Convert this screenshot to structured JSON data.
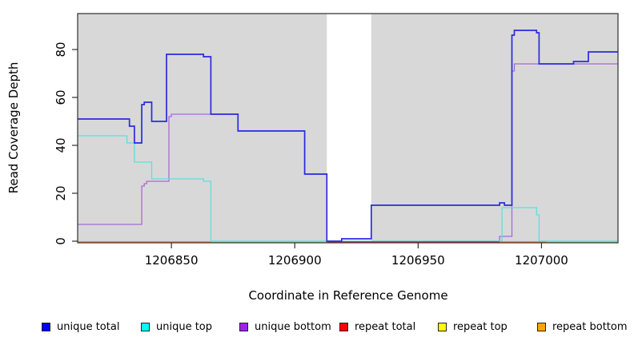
{
  "chart_data": {
    "type": "line",
    "subtype": "step-coverage-plot",
    "title": "",
    "xlabel": "Coordinate in Reference Genome",
    "ylabel": "Read Coverage Depth",
    "x_ticks": [
      1206850,
      1206900,
      1206950,
      1207000
    ],
    "y_ticks": [
      0,
      20,
      40,
      60,
      80
    ],
    "xlim": [
      1206812,
      1207031
    ],
    "ylim": [
      0,
      90
    ],
    "plot_bg_color": "#d8d8d8",
    "gap_band": {
      "x_start": 1206913,
      "x_end": 1206931,
      "color": "#ffffff"
    },
    "series": [
      {
        "name": "unique bottom",
        "color": "#a86ad6",
        "legend_color": "#a020f0",
        "steps": [
          [
            1206812,
            7
          ],
          [
            1206838,
            23
          ],
          [
            1206839,
            24
          ],
          [
            1206840,
            25
          ],
          [
            1206849,
            52
          ],
          [
            1206850,
            53
          ],
          [
            1206877,
            46
          ],
          [
            1206904,
            28
          ],
          [
            1206913,
            0
          ],
          [
            1206983,
            2
          ],
          [
            1206988,
            71
          ],
          [
            1206989,
            74
          ]
        ],
        "x_end": 1207031
      },
      {
        "name": "unique top",
        "color": "#5fdede",
        "legend_color": "#00ffff",
        "steps": [
          [
            1206812,
            44
          ],
          [
            1206832,
            41
          ],
          [
            1206835,
            33
          ],
          [
            1206842,
            26
          ],
          [
            1206863,
            25
          ],
          [
            1206866,
            0
          ],
          [
            1206984,
            14
          ],
          [
            1206998,
            11
          ],
          [
            1206999,
            0
          ]
        ],
        "x_end": 1207031
      },
      {
        "name": "unique total",
        "color": "#2b2be0",
        "legend_color": "#0000ff",
        "steps": [
          [
            1206812,
            51
          ],
          [
            1206833,
            48
          ],
          [
            1206835,
            41
          ],
          [
            1206838,
            57
          ],
          [
            1206839,
            58
          ],
          [
            1206842,
            50
          ],
          [
            1206848,
            78
          ],
          [
            1206863,
            77
          ],
          [
            1206866,
            53
          ],
          [
            1206877,
            46
          ],
          [
            1206904,
            28
          ],
          [
            1206913,
            0
          ],
          [
            1206919,
            1
          ],
          [
            1206931,
            15
          ],
          [
            1206983,
            16
          ],
          [
            1206985,
            15
          ],
          [
            1206988,
            86
          ],
          [
            1206989,
            88
          ],
          [
            1206998,
            87
          ],
          [
            1206999,
            74
          ],
          [
            1207013,
            75
          ],
          [
            1207019,
            79
          ]
        ],
        "x_end": 1207031
      },
      {
        "name": "repeat total",
        "color": "#cc3b5e",
        "legend_color": "#ff0000",
        "steps": [
          [
            1206812,
            0
          ]
        ],
        "x_end": 1207031
      },
      {
        "name": "repeat top",
        "color": "#f2e641",
        "legend_color": "#ffff00",
        "steps": [
          [
            1206812,
            0
          ]
        ],
        "x_end": 1207031
      },
      {
        "name": "repeat bottom",
        "color": "#ff8c19",
        "legend_color": "#ffa500",
        "steps": [
          [
            1206812,
            0
          ]
        ],
        "x_end": 1207031
      }
    ],
    "baseline_segments": [
      {
        "x_start": 1206812,
        "x_end": 1206866,
        "y": 0,
        "color": "#ff8c19",
        "series": "repeat bottom"
      },
      {
        "x_start": 1206866,
        "x_end": 1206913,
        "y": 0,
        "color": "#96cf9e",
        "series": "repeat top over unique top"
      },
      {
        "x_start": 1206913,
        "x_end": 1206983,
        "y": 0,
        "color": "#cc3b5e",
        "series": "repeat total"
      },
      {
        "x_start": 1206983,
        "x_end": 1207002,
        "y": 0,
        "color": "#ff8c19",
        "series": "repeat bottom"
      },
      {
        "x_start": 1207002,
        "x_end": 1207031,
        "y": 0,
        "color": "#96cf9e",
        "series": "repeat top"
      }
    ],
    "legend": [
      {
        "label": "unique total",
        "color": "#0000ff"
      },
      {
        "label": "unique top",
        "color": "#00ffff"
      },
      {
        "label": "unique bottom",
        "color": "#a020f0"
      },
      {
        "label": "repeat total",
        "color": "#ff0000"
      },
      {
        "label": "repeat top",
        "color": "#ffff00"
      },
      {
        "label": "repeat bottom",
        "color": "#ffa500"
      }
    ],
    "legend_position": "bottom",
    "grid": false
  },
  "layout_text": {
    "xlabel": "Coordinate in Reference Genome",
    "ylabel": "Read Coverage Depth"
  }
}
